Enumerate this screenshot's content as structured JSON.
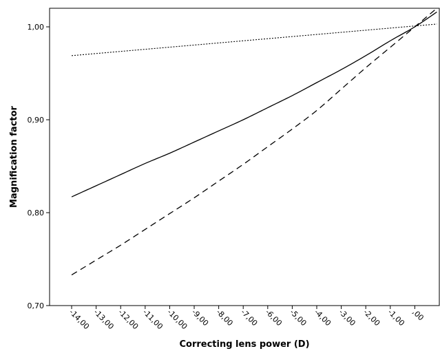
{
  "chart_data": {
    "type": "line",
    "title": "",
    "xlabel": "Correcting lens power (D)",
    "ylabel": "Magnification factor",
    "xlim": [
      -14.9,
      1.0
    ],
    "ylim": [
      0.7,
      1.02
    ],
    "x_ticks": [
      -14,
      -13,
      -12,
      -11,
      -10,
      -9,
      -8,
      -7,
      -6,
      -5,
      -4,
      -3,
      -2,
      -1,
      0
    ],
    "x_tick_labels": [
      "-14,00",
      "-13,00",
      "-12,00",
      "-11,00",
      "-10,00",
      "-9,00",
      "-8,00",
      "-7,00",
      "-6,00",
      "-5,00",
      "-4,00",
      "-3,00",
      "-2,00",
      "-1,00",
      ",00"
    ],
    "y_ticks": [
      0.7,
      0.8,
      0.9,
      1.0
    ],
    "y_tick_labels": [
      "0,70",
      "0,80",
      "0,90",
      "1,00"
    ],
    "grid": false,
    "legend": "none",
    "series": [
      {
        "style": "solid",
        "x": [
          -14,
          -13,
          -12,
          -11,
          -10,
          -9,
          -8,
          -7,
          -6,
          -5,
          -4,
          -3,
          -2,
          -1,
          0,
          0.9
        ],
        "y": [
          0.817,
          0.829,
          0.841,
          0.853,
          0.864,
          0.876,
          0.888,
          0.9,
          0.913,
          0.926,
          0.94,
          0.954,
          0.969,
          0.985,
          1.0,
          1.016
        ]
      },
      {
        "style": "dashed",
        "x": [
          -14,
          -13,
          -12,
          -11,
          -10,
          -9,
          -8,
          -7,
          -6,
          -5,
          -4,
          -3,
          -2,
          -1,
          0,
          0.9
        ],
        "y": [
          0.733,
          0.749,
          0.765,
          0.782,
          0.799,
          0.816,
          0.834,
          0.852,
          0.871,
          0.89,
          0.91,
          0.933,
          0.956,
          0.978,
          1.0,
          1.02
        ]
      },
      {
        "style": "dotted",
        "x": [
          -14,
          0.9
        ],
        "y": [
          0.969,
          1.003
        ]
      }
    ]
  }
}
